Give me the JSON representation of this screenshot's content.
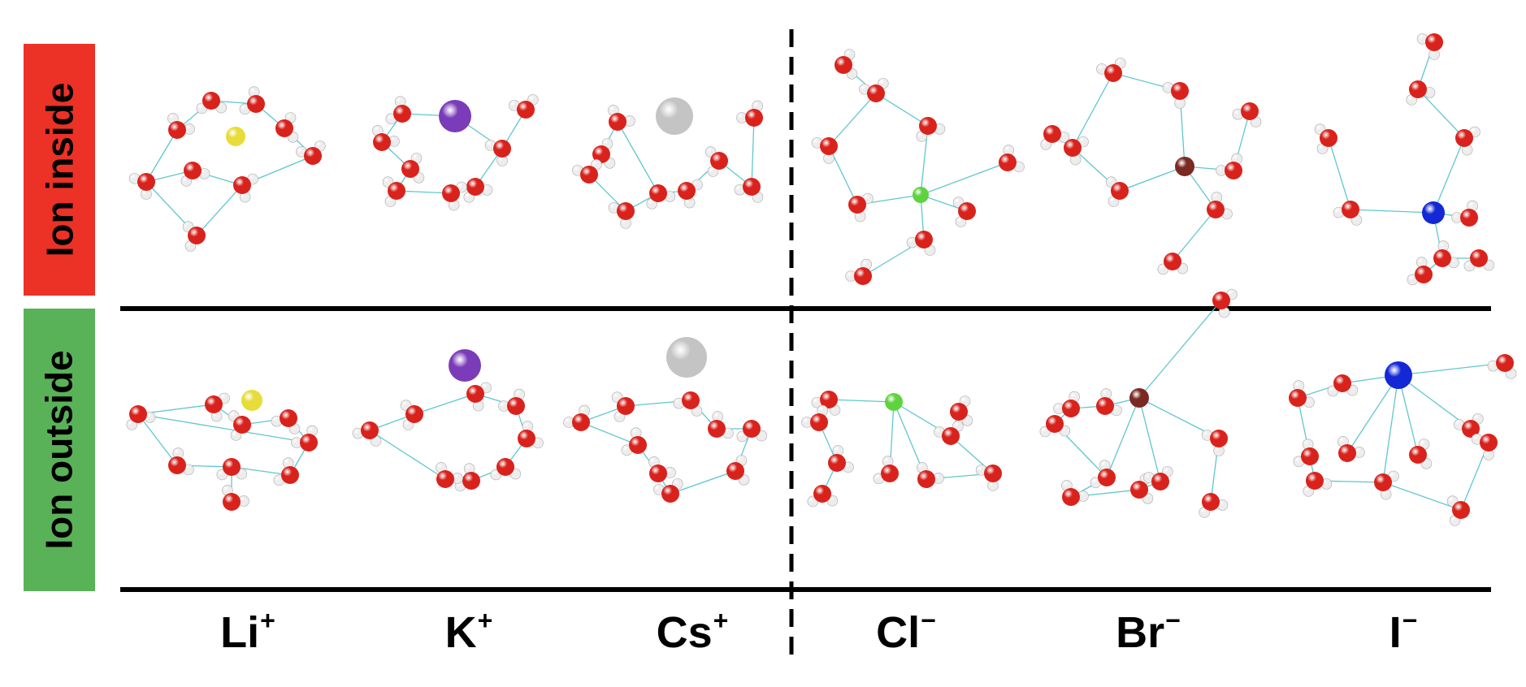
{
  "rows": {
    "inside": {
      "label": "Ion inside",
      "color": "#ec3126"
    },
    "outside": {
      "label": "Ion outside",
      "color": "#59b257"
    }
  },
  "ions": [
    {
      "symbol": "Li",
      "charge": "+",
      "color": "#e7dc3a"
    },
    {
      "symbol": "K",
      "charge": "+",
      "color": "#7a3cb8"
    },
    {
      "symbol": "Cs",
      "charge": "+",
      "color": "#c4c4c4"
    },
    {
      "symbol": "Cl",
      "charge": "−",
      "color": "#5fd33f"
    },
    {
      "symbol": "Br",
      "charge": "−",
      "color": "#7a2a22"
    },
    {
      "symbol": "I",
      "charge": "−",
      "color": "#1428d6"
    }
  ],
  "colors": {
    "oxygen": "#d9221c",
    "hydrogen": "#ededed",
    "hbond": "#5fc7cf"
  }
}
